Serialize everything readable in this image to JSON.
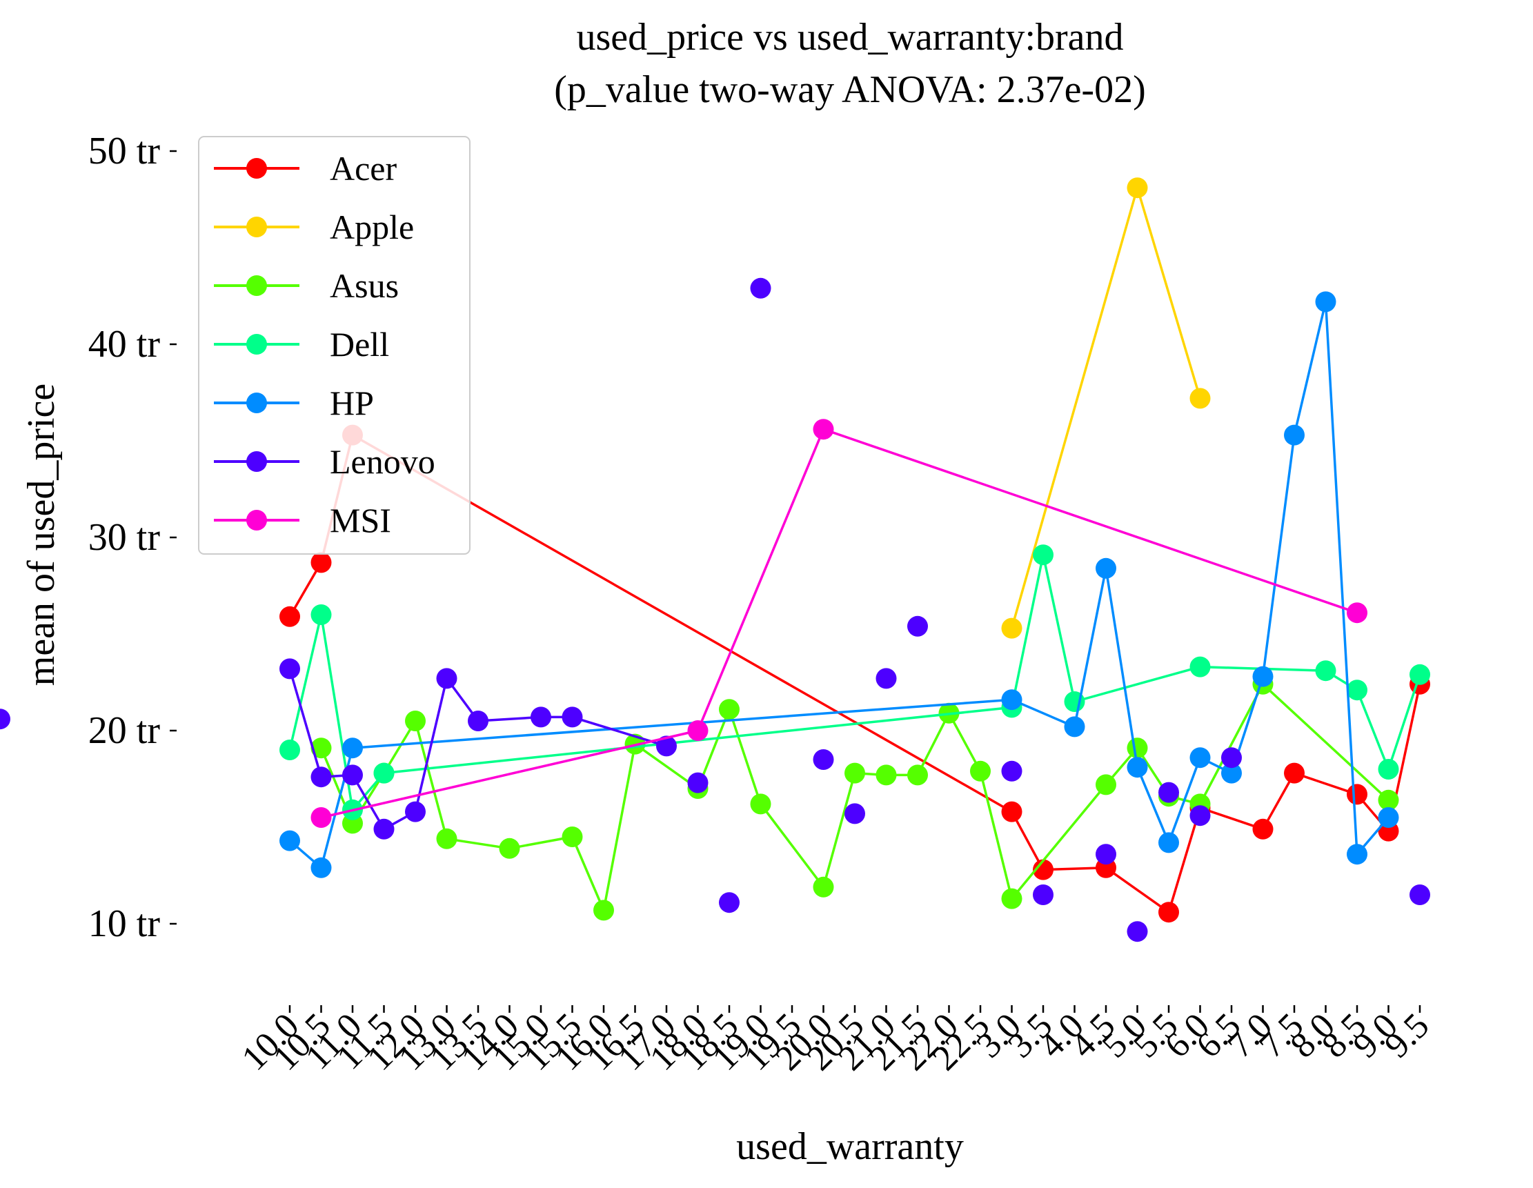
{
  "chart_data": {
    "type": "line",
    "title": "used_price vs used_warranty:brand",
    "subtitle": "(p_value two-way ANOVA: 2.37e-02)",
    "xlabel": "used_warranty",
    "ylabel": "mean of used_price",
    "categories": [
      "10.0",
      "10.5",
      "11.0",
      "11.5",
      "12.0",
      "13.0",
      "13.5",
      "14.0",
      "15.0",
      "15.5",
      "16.0",
      "16.5",
      "17.0",
      "18.0",
      "18.5",
      "19.0",
      "19.5",
      "20.0",
      "20.5",
      "21.0",
      "21.5",
      "22.0",
      "22.5",
      "3.0",
      "3.5",
      "4.0",
      "4.5",
      "5.0",
      "5.5",
      "6.0",
      "6.5",
      "7.0",
      "7.5",
      "8.0",
      "8.5",
      "9.0",
      "9.5"
    ],
    "ylim": [
      5,
      51
    ],
    "yticks": [
      {
        "value": 10,
        "label": "10 tr"
      },
      {
        "value": 20,
        "label": "20 tr"
      },
      {
        "value": 30,
        "label": "30 tr"
      },
      {
        "value": 40,
        "label": "40 tr"
      },
      {
        "value": 50,
        "label": "50 tr"
      }
    ],
    "grid": false,
    "legend_position": "top-left",
    "series": [
      {
        "name": "Acer",
        "color": "#ff0000",
        "points": [
          {
            "x": "10.0",
            "y": 25.9
          },
          {
            "x": "10.5",
            "y": 28.7
          },
          {
            "x": "11.0",
            "y": 35.3
          },
          {
            "x": "3.0",
            "y": 15.8
          },
          {
            "x": "3.5",
            "y": 12.8
          },
          {
            "x": "4.5",
            "y": 12.9
          },
          {
            "x": "5.5",
            "y": 10.6
          },
          {
            "x": "6.0",
            "y": 16.0
          },
          {
            "x": "7.0",
            "y": 14.9
          },
          {
            "x": "7.5",
            "y": 17.8
          },
          {
            "x": "8.5",
            "y": 16.7
          },
          {
            "x": "9.0",
            "y": 14.8
          },
          {
            "x": "9.5",
            "y": 22.4
          }
        ]
      },
      {
        "name": "Apple",
        "color": "#ffd500",
        "points": [
          {
            "x": "3.0",
            "y": 25.3
          },
          {
            "x": "5.0",
            "y": 48.1
          },
          {
            "x": "6.0",
            "y": 37.2
          }
        ]
      },
      {
        "name": "Asus",
        "color": "#55ff00",
        "points": [
          {
            "x": "10.5",
            "y": 19.1
          },
          {
            "x": "11.0",
            "y": 15.2
          },
          {
            "x": "11.5",
            "y": 17.8
          },
          {
            "x": "12.0",
            "y": 20.5
          },
          {
            "x": "13.0",
            "y": 14.4
          },
          {
            "x": "14.0",
            "y": 13.9
          },
          {
            "x": "15.5",
            "y": 14.5
          },
          {
            "x": "16.0",
            "y": 10.7
          },
          {
            "x": "16.5",
            "y": 19.3
          },
          {
            "x": "18.0",
            "y": 17.0
          },
          {
            "x": "18.5",
            "y": 21.1
          },
          {
            "x": "19.0",
            "y": 16.2
          },
          {
            "x": "20.0",
            "y": 11.9
          },
          {
            "x": "20.5",
            "y": 17.8
          },
          {
            "x": "21.0",
            "y": 17.7
          },
          {
            "x": "21.5",
            "y": 17.7
          },
          {
            "x": "22.0",
            "y": 20.9
          },
          {
            "x": "22.5",
            "y": 17.9
          },
          {
            "x": "3.0",
            "y": 11.3
          },
          {
            "x": "4.5",
            "y": 17.2
          },
          {
            "x": "5.0",
            "y": 19.1
          },
          {
            "x": "5.5",
            "y": 16.6
          },
          {
            "x": "6.0",
            "y": 16.2
          },
          {
            "x": "7.0",
            "y": 22.4
          },
          {
            "x": "9.0",
            "y": 16.4
          }
        ]
      },
      {
        "name": "Dell",
        "color": "#00ff8a",
        "points": [
          {
            "x": "10.0",
            "y": 19.0
          },
          {
            "x": "10.5",
            "y": 26.0
          },
          {
            "x": "11.0",
            "y": 15.9
          },
          {
            "x": "11.5",
            "y": 17.8
          },
          {
            "x": "3.0",
            "y": 21.2
          },
          {
            "x": "3.5",
            "y": 29.1
          },
          {
            "x": "4.0",
            "y": 21.5
          },
          {
            "x": "6.0",
            "y": 23.3
          },
          {
            "x": "8.0",
            "y": 23.1
          },
          {
            "x": "8.5",
            "y": 22.1
          },
          {
            "x": "9.0",
            "y": 18.0
          },
          {
            "x": "9.5",
            "y": 22.9
          }
        ]
      },
      {
        "name": "HP",
        "color": "#008cff",
        "points": [
          {
            "x": "10.0",
            "y": 14.3
          },
          {
            "x": "10.5",
            "y": 12.9
          },
          {
            "x": "11.0",
            "y": 19.1
          },
          {
            "x": "3.0",
            "y": 21.6
          },
          {
            "x": "4.0",
            "y": 20.2
          },
          {
            "x": "4.5",
            "y": 28.4
          },
          {
            "x": "5.0",
            "y": 18.1
          },
          {
            "x": "5.5",
            "y": 14.2
          },
          {
            "x": "6.0",
            "y": 18.6
          },
          {
            "x": "6.5",
            "y": 17.8
          },
          {
            "x": "7.0",
            "y": 22.8
          },
          {
            "x": "7.5",
            "y": 35.3
          },
          {
            "x": "8.0",
            "y": 42.2
          },
          {
            "x": "8.5",
            "y": 13.6
          },
          {
            "x": "9.0",
            "y": 15.5
          }
        ]
      },
      {
        "name": "Lenovo",
        "color": "#4d00ff",
        "points": [
          {
            "x": "10.0",
            "y": 23.2
          },
          {
            "x": "10.5",
            "y": 17.6
          },
          {
            "x": "11.0",
            "y": 17.7
          },
          {
            "x": "11.5",
            "y": 14.9
          },
          {
            "x": "12.0",
            "y": 15.8
          },
          {
            "x": "13.0",
            "y": 22.7
          },
          {
            "x": "13.5",
            "y": 20.5
          },
          {
            "x": "15.0",
            "y": 20.7
          },
          {
            "x": "15.5",
            "y": 20.7
          },
          {
            "x": "17.0",
            "y": 19.2
          },
          {
            "x": "17.5",
            "y": 20.6
          },
          {
            "x": "18.0",
            "y": 17.3
          },
          {
            "x": "18.5",
            "y": 11.1
          },
          {
            "x": "19.0",
            "y": 42.9
          },
          {
            "x": "20.0",
            "y": 18.5
          },
          {
            "x": "20.5",
            "y": 15.7
          },
          {
            "x": "21.0",
            "y": 22.7
          },
          {
            "x": "21.5",
            "y": 25.4
          },
          {
            "x": "3.0",
            "y": 17.9
          },
          {
            "x": "3.5",
            "y": 11.5
          },
          {
            "x": "4.5",
            "y": 13.6
          },
          {
            "x": "5.0",
            "y": 9.6
          },
          {
            "x": "5.5",
            "y": 16.8
          },
          {
            "x": "6.0",
            "y": 15.6
          },
          {
            "x": "6.5",
            "y": 18.6
          },
          {
            "x": "9.5",
            "y": 11.5
          }
        ]
      },
      {
        "name": "MSI",
        "color": "#ff00d5",
        "points": [
          {
            "x": "10.5",
            "y": 15.5
          },
          {
            "x": "18.0",
            "y": 20.0
          },
          {
            "x": "20.0",
            "y": 35.6
          },
          {
            "x": "8.5",
            "y": 26.1
          }
        ]
      }
    ]
  }
}
